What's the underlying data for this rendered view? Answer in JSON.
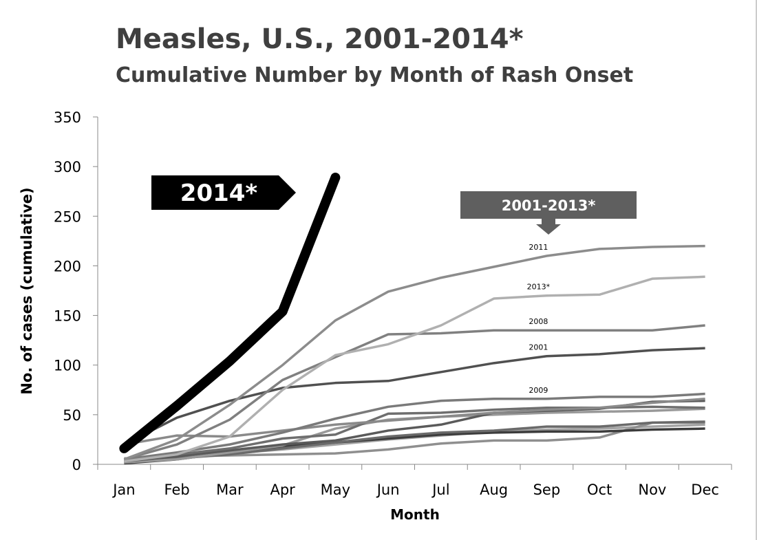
{
  "chart_data": {
    "type": "line",
    "title": "Measles, U.S., 2001-2014*",
    "subtitle": "Cumulative Number by Month of Rash Onset",
    "xlabel": "Month",
    "ylabel": "No. of cases (cumulative)",
    "categories": [
      "Jan",
      "Feb",
      "Mar",
      "Apr",
      "May",
      "Jun",
      "Jul",
      "Aug",
      "Sep",
      "Oct",
      "Nov",
      "Dec"
    ],
    "ylim": [
      0,
      350
    ],
    "yticks": [
      0,
      50,
      100,
      150,
      200,
      250,
      300,
      350
    ],
    "grid": false,
    "legend": "none",
    "highlight_series": {
      "name": "2014*",
      "color": "#000000",
      "values": [
        16,
        59,
        104,
        154,
        289
      ]
    },
    "highlight_label": "2014*",
    "group_label": "2001-2013*",
    "series": [
      {
        "name": "2011",
        "color": "#8c8c8c",
        "values": [
          5,
          25,
          60,
          100,
          145,
          174,
          188,
          199,
          210,
          217,
          219,
          220
        ]
      },
      {
        "name": "2013*",
        "color": "#b0b0b0",
        "values": [
          3,
          10,
          28,
          75,
          110,
          121,
          140,
          167,
          170,
          171,
          187,
          189
        ]
      },
      {
        "name": "2008",
        "color": "#808080",
        "values": [
          5,
          20,
          45,
          85,
          108,
          131,
          132,
          135,
          135,
          135,
          135,
          140
        ]
      },
      {
        "name": "2001",
        "color": "#505050",
        "values": [
          20,
          47,
          64,
          77,
          82,
          84,
          93,
          102,
          109,
          111,
          115,
          117
        ]
      },
      {
        "name": "2009",
        "color": "#7a7a7a",
        "values": [
          5,
          12,
          20,
          32,
          46,
          58,
          64,
          66,
          66,
          68,
          68,
          71
        ]
      },
      {
        "color": "#8a8a8a",
        "values": [
          20,
          29,
          28,
          34,
          40,
          44,
          48,
          52,
          55,
          57,
          62,
          66
        ]
      },
      {
        "color": "#6e6e6e",
        "values": [
          5,
          10,
          16,
          26,
          30,
          51,
          52,
          55,
          57,
          57,
          58,
          57
        ]
      },
      {
        "color": "#5a5a5a",
        "values": [
          3,
          8,
          14,
          20,
          24,
          34,
          40,
          52,
          54,
          56,
          63,
          64
        ]
      },
      {
        "color": "#999999",
        "values": [
          2,
          5,
          12,
          19,
          36,
          45,
          48,
          50,
          52,
          53,
          54,
          56
        ]
      },
      {
        "color": "#6a6a6a",
        "values": [
          3,
          6,
          10,
          16,
          22,
          28,
          32,
          34,
          38,
          38,
          42,
          43
        ]
      },
      {
        "color": "#3c3c3c",
        "values": [
          1,
          5,
          12,
          18,
          22,
          26,
          30,
          32,
          33,
          33,
          35,
          36
        ]
      },
      {
        "color": "#8f8f8f",
        "values": [
          6,
          8,
          9,
          10,
          11,
          15,
          21,
          24,
          24,
          27,
          42,
          42
        ]
      },
      {
        "color": "#a3a3a3",
        "values": [
          4,
          7,
          11,
          15,
          20,
          25,
          29,
          33,
          35,
          36,
          38,
          40
        ]
      }
    ]
  }
}
